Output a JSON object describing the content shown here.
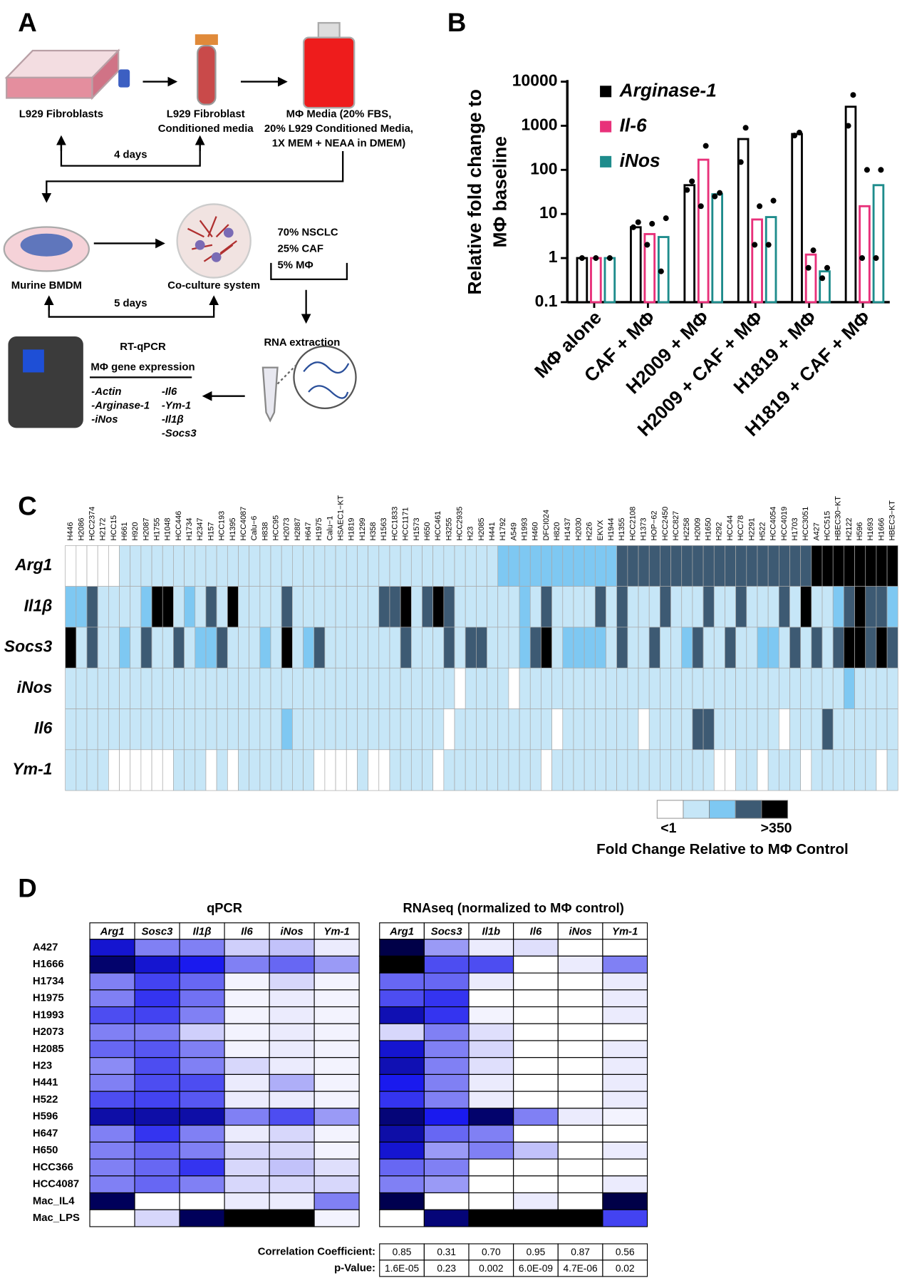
{
  "panel_labels": [
    "A",
    "B",
    "C",
    "D"
  ],
  "diagram": {
    "fibroblasts": "L929 Fibroblasts",
    "conditioned_media": [
      "L929 Fibroblast",
      "Conditioned media"
    ],
    "media": [
      "MΦ Media (20% FBS,",
      "20% L929 Conditioned Media,",
      "1X MEM + NEAA in DMEM)"
    ],
    "duration_1": "4 days",
    "bmdm": "Murine BMDM",
    "coculture": "Co-culture system",
    "ratios": [
      "70% NSCLC",
      "25% CAF",
      "5% MΦ"
    ],
    "duration_2": "5 days",
    "rna": "RNA extraction",
    "qpcr_title": [
      "RT-qPCR",
      "MΦ gene expression"
    ],
    "genes": [
      "-Actin",
      "-Arginase-1",
      "-iNos",
      "-Il6",
      "-Ym-1",
      "-Il1β",
      "-Socs3"
    ]
  },
  "chart_data": [
    {
      "type": "bar",
      "ylabel": [
        "Relative fold change to",
        "MΦ baseline"
      ],
      "categories": [
        "MΦ alone",
        "CAF + MΦ",
        "H2009 + MΦ",
        "H2009 + CAF + MΦ",
        "H1819 + MΦ",
        "H1819 + CAF + MΦ"
      ],
      "log_scale": true,
      "ylim": [
        0.1,
        10000
      ],
      "yticks": [
        0.1,
        1,
        10,
        100,
        1000,
        10000
      ],
      "grid": false,
      "legend": "upper left",
      "series": [
        {
          "name": "Arginase-1",
          "color": "#000000",
          "values": [
            1,
            5,
            45,
            500,
            650,
            2700
          ],
          "replicates": [
            [
              1
            ],
            [
              5,
              6.5
            ],
            [
              35,
              55
            ],
            [
              150,
              900
            ],
            [
              600,
              700
            ],
            [
              1000,
              5000
            ]
          ]
        },
        {
          "name": "Il-6",
          "color": "#e8317a",
          "values": [
            1,
            3.5,
            170,
            7.5,
            1.2,
            15
          ],
          "replicates": [
            [
              1
            ],
            [
              2,
              6
            ],
            [
              15,
              350
            ],
            [
              2,
              15
            ],
            [
              0.6,
              1.5
            ],
            [
              1,
              100
            ]
          ]
        },
        {
          "name": "iNos",
          "color": "#1e8c8c",
          "values": [
            1,
            3,
            28,
            8.5,
            0.5,
            45
          ],
          "replicates": [
            [
              1
            ],
            [
              0.5,
              8
            ],
            [
              25,
              30
            ],
            [
              2,
              20
            ],
            [
              0.35,
              0.6
            ],
            [
              1,
              100
            ]
          ]
        }
      ]
    },
    {
      "type": "heatmap",
      "columns": [
        "H446",
        "H2086",
        "HCC2374",
        "H2172",
        "HCC15",
        "H661",
        "H920",
        "H2087",
        "H1755",
        "H1048",
        "HCC446",
        "H1734",
        "H2347",
        "H157",
        "HCC193",
        "H1395",
        "HCC4087",
        "Calu−6",
        "H838",
        "HCC95",
        "H2073",
        "H2887",
        "H647",
        "H1975",
        "Calu−1",
        "HSAEC1−KT",
        "H1819",
        "H1299",
        "H358",
        "H1563",
        "HCC1833",
        "HCC1171",
        "H1573",
        "H650",
        "HCC461",
        "H3255",
        "HCC2935",
        "H23",
        "H2085",
        "H441",
        "H1792",
        "A549",
        "H1993",
        "H460",
        "DFCI024",
        "H820",
        "H1437",
        "H2030",
        "H226",
        "EKVX",
        "H1944",
        "H1355",
        "HCC2108",
        "H1373",
        "HOP−62",
        "HCC2450",
        "HCC827",
        "H2258",
        "H2009",
        "H1650",
        "H292",
        "HCC44",
        "HCC78",
        "H2291",
        "H522",
        "HCC4054",
        "HCC4019",
        "H1703",
        "HCC3051",
        "A427",
        "HCC515",
        "HBEC30−KT",
        "H2122",
        "H596",
        "H1693",
        "H1666",
        "HBEC3−KT"
      ],
      "rows": [
        "Arg1",
        "Il1β",
        "Socs3",
        "iNos",
        "Il6",
        "Ym-1"
      ],
      "colors": [
        "#ffffff",
        "#c6e6f7",
        "#7ec8f2",
        "#3d5a73",
        "#000000"
      ],
      "legend_labels": [
        "<1",
        ">350"
      ],
      "legend_title": "Fold Change Relative to MΦ Control",
      "values": [
        [
          0,
          0,
          0,
          0,
          0,
          1,
          1,
          1,
          1,
          1,
          1,
          1,
          1,
          1,
          1,
          1,
          1,
          1,
          1,
          1,
          1,
          1,
          1,
          1,
          1,
          1,
          1,
          1,
          1,
          1,
          1,
          1,
          1,
          1,
          1,
          1,
          1,
          1,
          1,
          1,
          2,
          2,
          2,
          2,
          2,
          2,
          2,
          2,
          2,
          2,
          2,
          3,
          3,
          3,
          3,
          3,
          3,
          3,
          3,
          3,
          3,
          3,
          3,
          3,
          3,
          3,
          3,
          3,
          3,
          4,
          4,
          4,
          4,
          4,
          4,
          4,
          4
        ],
        [
          2,
          2,
          3,
          1,
          1,
          1,
          1,
          2,
          4,
          4,
          1,
          2,
          1,
          3,
          1,
          4,
          1,
          1,
          1,
          1,
          3,
          1,
          1,
          1,
          1,
          1,
          1,
          1,
          1,
          3,
          3,
          4,
          1,
          3,
          4,
          3,
          1,
          1,
          1,
          1,
          1,
          1,
          2,
          1,
          3,
          1,
          1,
          1,
          1,
          3,
          1,
          3,
          1,
          1,
          1,
          3,
          1,
          1,
          1,
          3,
          1,
          1,
          3,
          1,
          1,
          1,
          3,
          1,
          4,
          1,
          1,
          2,
          3,
          4,
          3,
          3,
          2
        ],
        [
          4,
          1,
          3,
          1,
          1,
          2,
          1,
          3,
          1,
          1,
          3,
          1,
          2,
          2,
          3,
          1,
          1,
          1,
          2,
          1,
          4,
          1,
          2,
          3,
          1,
          1,
          1,
          1,
          1,
          1,
          1,
          3,
          1,
          1,
          1,
          3,
          1,
          3,
          3,
          1,
          1,
          1,
          2,
          3,
          4,
          1,
          2,
          2,
          2,
          2,
          1,
          3,
          1,
          1,
          3,
          1,
          1,
          2,
          3,
          1,
          1,
          3,
          1,
          1,
          2,
          2,
          1,
          3,
          1,
          3,
          1,
          3,
          4,
          4,
          3,
          4,
          3
        ],
        [
          1,
          1,
          1,
          1,
          1,
          1,
          1,
          1,
          1,
          1,
          1,
          1,
          1,
          1,
          1,
          1,
          1,
          1,
          1,
          1,
          1,
          1,
          1,
          1,
          1,
          1,
          1,
          1,
          1,
          1,
          1,
          1,
          1,
          1,
          1,
          1,
          0,
          1,
          1,
          1,
          1,
          0,
          1,
          1,
          1,
          1,
          1,
          1,
          1,
          1,
          1,
          1,
          1,
          1,
          1,
          1,
          1,
          1,
          1,
          1,
          1,
          1,
          1,
          1,
          1,
          1,
          1,
          1,
          1,
          1,
          1,
          1,
          2,
          1,
          1,
          1,
          1
        ],
        [
          1,
          1,
          1,
          1,
          1,
          1,
          1,
          1,
          1,
          1,
          1,
          1,
          1,
          1,
          1,
          1,
          1,
          1,
          1,
          1,
          2,
          1,
          1,
          1,
          1,
          1,
          1,
          1,
          1,
          1,
          1,
          1,
          1,
          1,
          1,
          0,
          1,
          1,
          1,
          1,
          1,
          1,
          1,
          1,
          1,
          0,
          1,
          1,
          1,
          1,
          1,
          1,
          1,
          0,
          1,
          1,
          1,
          1,
          3,
          3,
          1,
          1,
          1,
          1,
          1,
          1,
          0,
          1,
          1,
          1,
          3,
          1,
          1,
          1,
          1,
          1,
          1
        ],
        [
          1,
          1,
          1,
          1,
          0,
          0,
          0,
          0,
          0,
          0,
          1,
          1,
          1,
          0,
          1,
          0,
          1,
          1,
          1,
          1,
          1,
          1,
          1,
          0,
          0,
          0,
          0,
          1,
          0,
          0,
          1,
          1,
          1,
          1,
          0,
          1,
          1,
          1,
          1,
          1,
          1,
          1,
          1,
          1,
          0,
          1,
          1,
          1,
          1,
          1,
          1,
          1,
          1,
          1,
          1,
          1,
          1,
          1,
          1,
          1,
          0,
          0,
          1,
          1,
          0,
          1,
          1,
          1,
          0,
          1,
          1,
          1,
          1,
          1,
          1,
          0,
          1
        ]
      ]
    },
    {
      "type": "heatmap",
      "title": "qPCR",
      "columns": [
        "Arg1",
        "Sosc3",
        "Il1β",
        "Il6",
        "iNos",
        "Ym-1"
      ],
      "rows": [
        "A427",
        "H1666",
        "H1734",
        "H1975",
        "H1993",
        "H2073",
        "H2085",
        "H23",
        "H441",
        "H522",
        "H596",
        "H647",
        "H650",
        "HCC366",
        "HCC4087",
        "Mac_IL4",
        "Mac_LPS"
      ],
      "color_scale": [
        "#ffffff",
        "#9a9af6",
        "#1a1aee",
        "#00005a",
        "#000000"
      ],
      "values": [
        [
          0.55,
          0.3,
          0.3,
          0.12,
          0.15,
          0.05
        ],
        [
          0.72,
          0.55,
          0.5,
          0.3,
          0.35,
          0.25
        ],
        [
          0.3,
          0.42,
          0.35,
          0.03,
          0.1,
          0.03
        ],
        [
          0.3,
          0.45,
          0.33,
          0.03,
          0.05,
          0.03
        ],
        [
          0.4,
          0.42,
          0.3,
          0.03,
          0.05,
          0.03
        ],
        [
          0.3,
          0.3,
          0.12,
          0.03,
          0.05,
          0.03
        ],
        [
          0.35,
          0.38,
          0.3,
          0.03,
          0.05,
          0.03
        ],
        [
          0.28,
          0.4,
          0.3,
          0.1,
          0.05,
          0.03
        ],
        [
          0.3,
          0.4,
          0.4,
          0.05,
          0.2,
          0.03
        ],
        [
          0.4,
          0.42,
          0.38,
          0.05,
          0.05,
          0.03
        ],
        [
          0.62,
          0.62,
          0.62,
          0.3,
          0.4,
          0.25
        ],
        [
          0.3,
          0.45,
          0.3,
          0.05,
          0.1,
          0.03
        ],
        [
          0.3,
          0.35,
          0.3,
          0.1,
          0.1,
          0.03
        ],
        [
          0.3,
          0.35,
          0.45,
          0.1,
          0.15,
          0.08
        ],
        [
          0.3,
          0.35,
          0.3,
          0.1,
          0.1,
          0.1
        ],
        [
          0.75,
          0,
          0,
          0.05,
          0.05,
          0.3
        ],
        [
          0,
          0.1,
          0.75,
          1,
          1,
          0.03
        ]
      ]
    },
    {
      "type": "heatmap",
      "title": "RNAseq (normalized to MΦ control)",
      "columns": [
        "Arg1",
        "Socs3",
        "Il1b",
        "Il6",
        "iNos",
        "Ym-1"
      ],
      "color_scale": [
        "#ffffff",
        "#9a9af6",
        "#1a1aee",
        "#00005a",
        "#000000"
      ],
      "values": [
        [
          0.8,
          0.25,
          0.05,
          0.08,
          0,
          0
        ],
        [
          1,
          0.4,
          0.4,
          0,
          0.05,
          0.3
        ],
        [
          0.35,
          0.35,
          0.05,
          0,
          0,
          0.05
        ],
        [
          0.4,
          0.45,
          0,
          0,
          0,
          0.05
        ],
        [
          0.6,
          0.45,
          0.03,
          0,
          0,
          0.05
        ],
        [
          0.1,
          0.3,
          0.08,
          0,
          0,
          0
        ],
        [
          0.55,
          0.3,
          0.1,
          0,
          0,
          0.05
        ],
        [
          0.6,
          0.3,
          0.08,
          0,
          0,
          0.05
        ],
        [
          0.5,
          0.3,
          0.05,
          0,
          0,
          0.05
        ],
        [
          0.45,
          0.3,
          0.05,
          0,
          0,
          0.05
        ],
        [
          0.7,
          0.5,
          0.72,
          0.3,
          0.05,
          0.03
        ],
        [
          0.62,
          0.35,
          0.3,
          0,
          0,
          0
        ],
        [
          0.55,
          0.25,
          0.3,
          0.15,
          0,
          0.05
        ],
        [
          0.35,
          0.3,
          0,
          0,
          0,
          0
        ],
        [
          0.3,
          0.25,
          0,
          0,
          0,
          0.05
        ],
        [
          0.78,
          0,
          0,
          0.05,
          0,
          0.8
        ],
        [
          0,
          0.7,
          1,
          1,
          1,
          0.42
        ]
      ]
    }
  ],
  "correlation_table": {
    "rows": [
      {
        "label": "Correlation Coefficient:",
        "cells": [
          "0.85",
          "0.31",
          "0.70",
          "0.95",
          "0.87",
          "0.56"
        ]
      },
      {
        "label": "p-Value:",
        "cells": [
          "1.6E-05",
          "0.23",
          "0.002",
          "6.0E-09",
          "4.7E-06",
          "0.02"
        ]
      }
    ]
  }
}
